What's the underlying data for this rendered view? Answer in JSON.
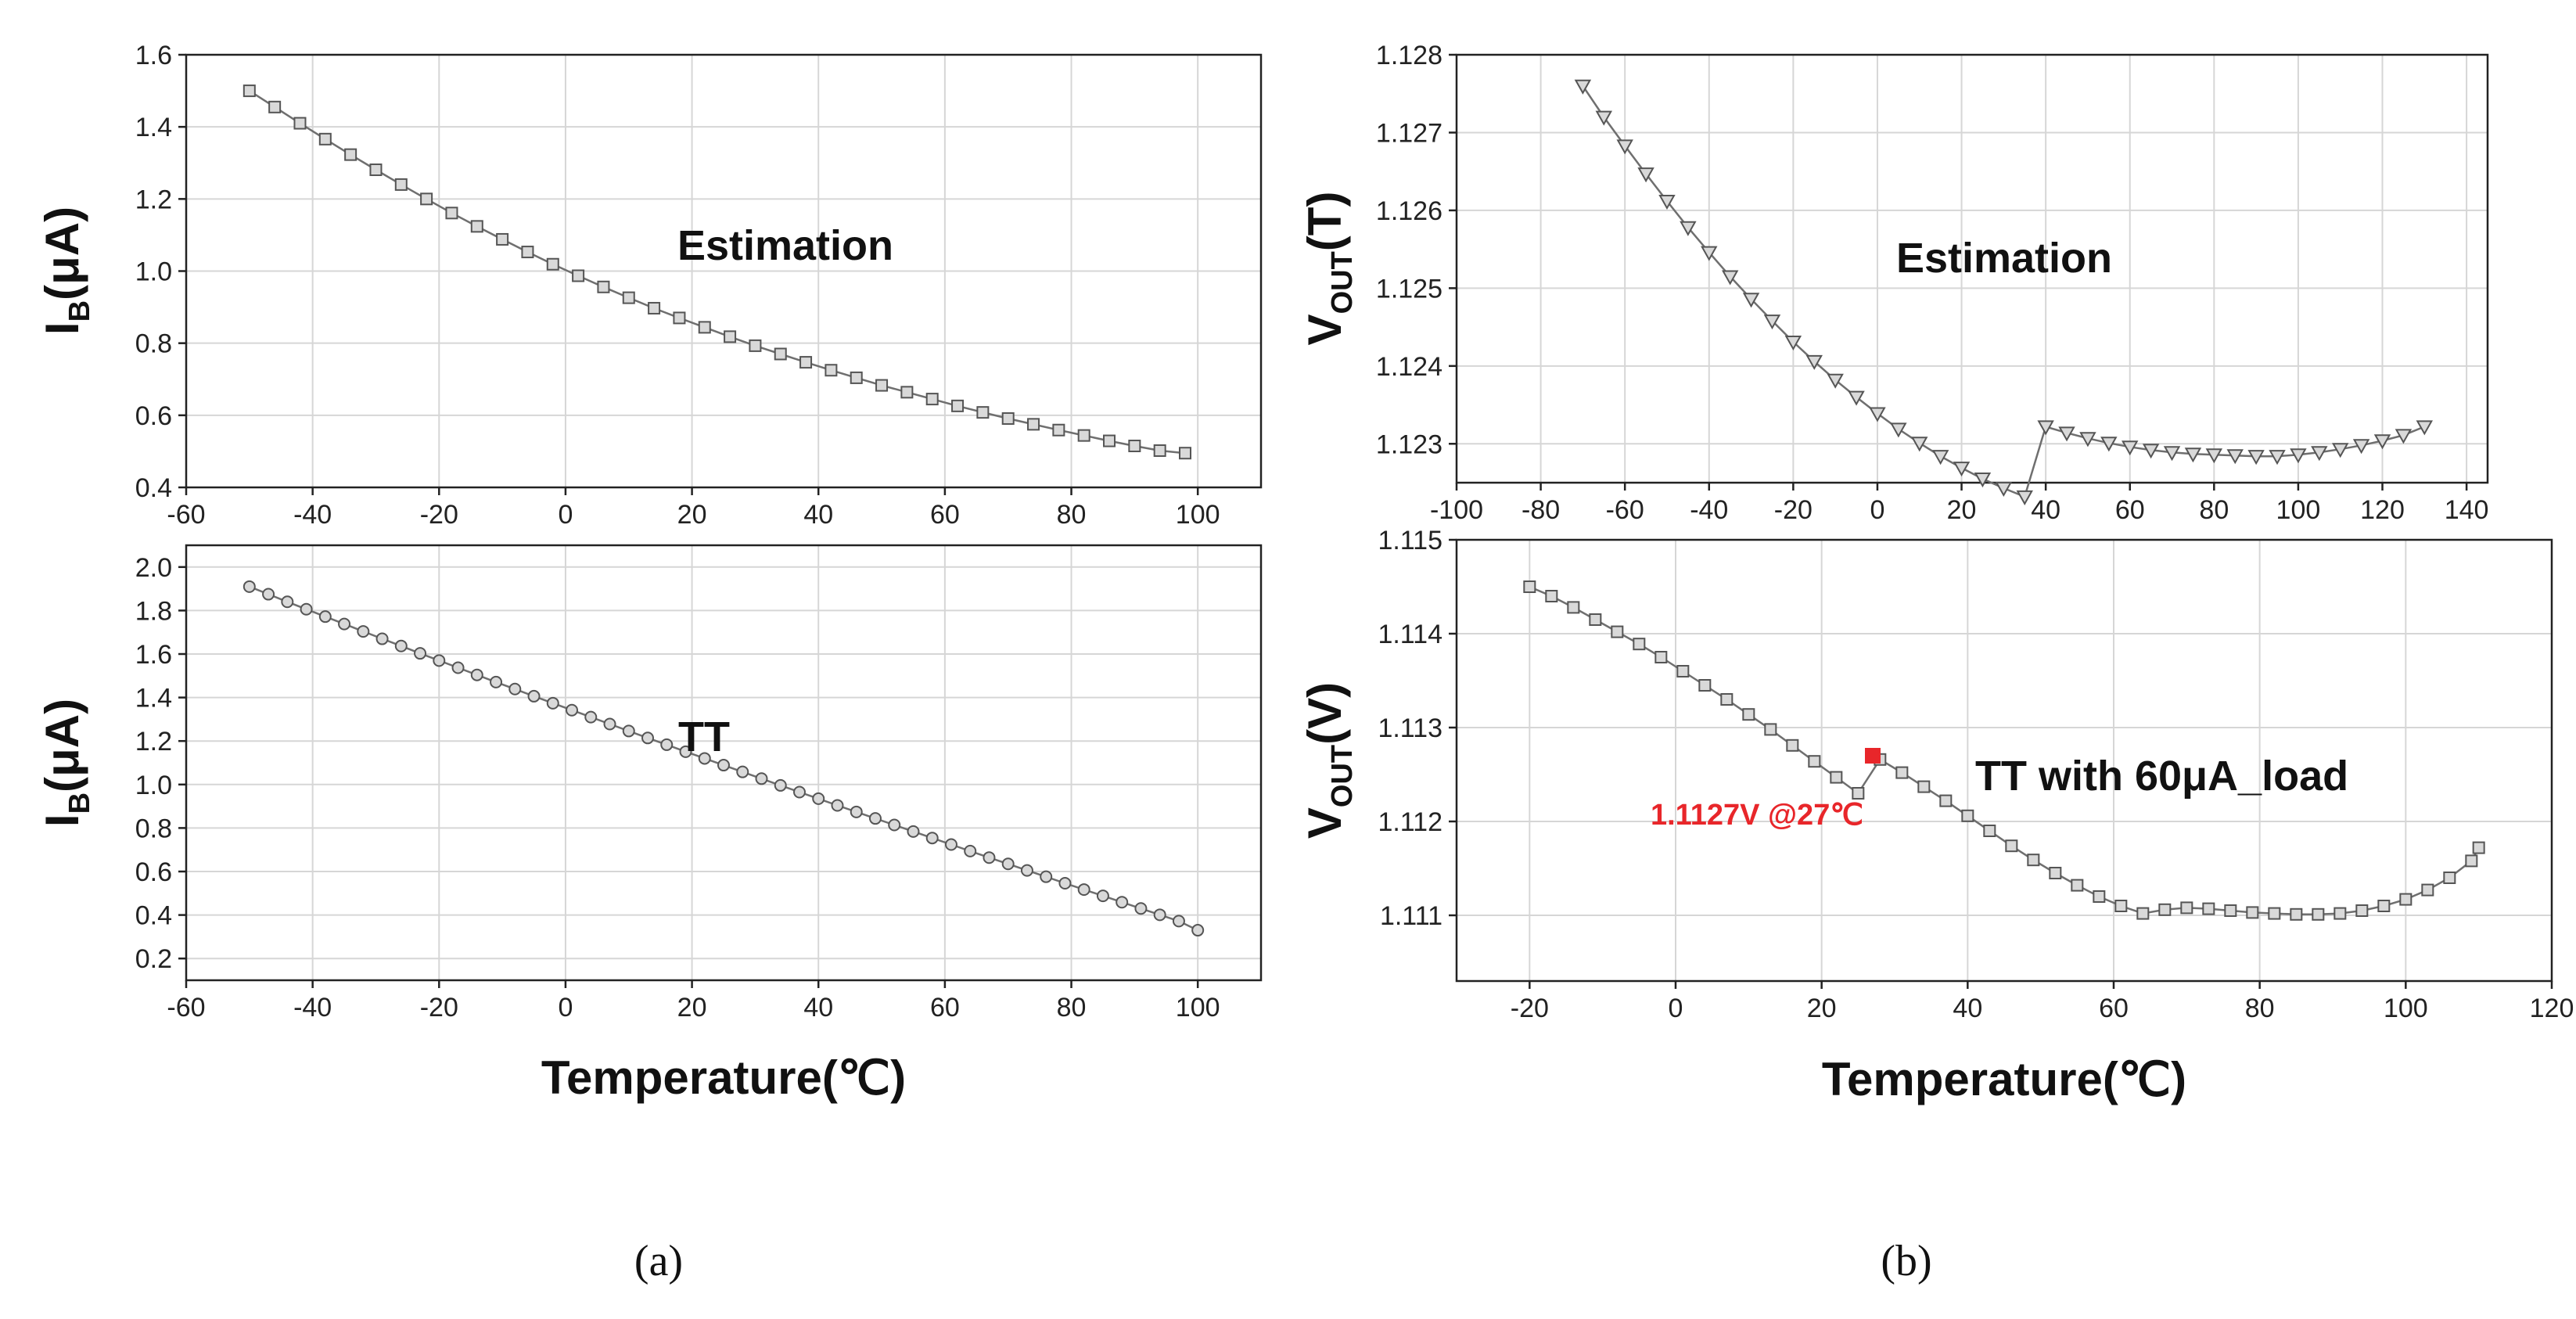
{
  "captions": {
    "a": "(a)",
    "b": "(b)"
  },
  "chart_data": [
    {
      "id": "a_top",
      "type": "line",
      "title": "",
      "annotation": "Estimation",
      "xlabel": "",
      "ylabel": "I_B(μA)",
      "ylabel_main": "I",
      "ylabel_sub": "B",
      "ylabel_rest": "(μA)",
      "xlim": [
        -60,
        110
      ],
      "ylim": [
        0.4,
        1.6
      ],
      "xticks": [
        -60,
        -40,
        -20,
        0,
        20,
        40,
        60,
        80,
        100
      ],
      "yticks": [
        0.4,
        0.6,
        0.8,
        1.0,
        1.2,
        1.4,
        1.6
      ],
      "xtick_labels": [
        "-60",
        "-40",
        "-20",
        "0",
        "20",
        "40",
        "60",
        "80",
        "100"
      ],
      "ytick_labels": [
        "0.4",
        "0.6",
        "0.8",
        "1.0",
        "1.2",
        "1.4",
        "1.6"
      ],
      "marker": "square",
      "series": [
        {
          "name": "Estimation",
          "x": [
            -50,
            -46,
            -42,
            -38,
            -34,
            -30,
            -26,
            -22,
            -18,
            -14,
            -10,
            -6,
            -2,
            2,
            6,
            10,
            14,
            18,
            22,
            26,
            30,
            34,
            38,
            42,
            46,
            50,
            54,
            58,
            62,
            66,
            70,
            74,
            78,
            82,
            86,
            90,
            94,
            98
          ],
          "y": [
            1.5,
            1.455,
            1.41,
            1.366,
            1.323,
            1.281,
            1.24,
            1.2,
            1.161,
            1.124,
            1.088,
            1.053,
            1.019,
            0.987,
            0.956,
            0.926,
            0.897,
            0.87,
            0.844,
            0.818,
            0.793,
            0.77,
            0.747,
            0.725,
            0.704,
            0.683,
            0.664,
            0.645,
            0.626,
            0.608,
            0.591,
            0.575,
            0.559,
            0.544,
            0.529,
            0.515,
            0.502,
            0.495
          ]
        }
      ]
    },
    {
      "id": "a_bottom",
      "type": "line",
      "title": "",
      "annotation": "TT",
      "xlabel": "Temperature(℃)",
      "ylabel": "I_B(μA)",
      "ylabel_main": "I",
      "ylabel_sub": "B",
      "ylabel_rest": "(μA)",
      "xlim": [
        -60,
        110
      ],
      "ylim": [
        0.1,
        2.1
      ],
      "xticks": [
        -60,
        -40,
        -20,
        0,
        20,
        40,
        60,
        80,
        100
      ],
      "yticks": [
        0.2,
        0.4,
        0.6,
        0.8,
        1.0,
        1.2,
        1.4,
        1.6,
        1.8,
        2.0
      ],
      "xtick_labels": [
        "-60",
        "-40",
        "-20",
        "0",
        "20",
        "40",
        "60",
        "80",
        "100"
      ],
      "ytick_labels": [
        "0.2",
        "0.4",
        "0.6",
        "0.8",
        "1.0",
        "1.2",
        "1.4",
        "1.6",
        "1.8",
        "2.0"
      ],
      "marker": "circle",
      "series": [
        {
          "name": "TT",
          "x": [
            -50,
            -47,
            -44,
            -41,
            -38,
            -35,
            -32,
            -29,
            -26,
            -23,
            -20,
            -17,
            -14,
            -11,
            -8,
            -5,
            -2,
            1,
            4,
            7,
            10,
            13,
            16,
            19,
            22,
            25,
            28,
            31,
            34,
            37,
            40,
            43,
            46,
            49,
            52,
            55,
            58,
            61,
            64,
            67,
            70,
            73,
            76,
            79,
            82,
            85,
            88,
            91,
            94,
            97,
            100
          ],
          "y": [
            1.91,
            1.875,
            1.84,
            1.806,
            1.772,
            1.738,
            1.704,
            1.67,
            1.637,
            1.603,
            1.57,
            1.537,
            1.504,
            1.471,
            1.439,
            1.406,
            1.374,
            1.342,
            1.31,
            1.278,
            1.246,
            1.214,
            1.183,
            1.151,
            1.12,
            1.089,
            1.058,
            1.027,
            0.996,
            0.965,
            0.935,
            0.904,
            0.874,
            0.844,
            0.814,
            0.784,
            0.754,
            0.724,
            0.694,
            0.664,
            0.635,
            0.605,
            0.576,
            0.546,
            0.517,
            0.488,
            0.459,
            0.43,
            0.401,
            0.372,
            0.33
          ]
        }
      ]
    },
    {
      "id": "b_top",
      "type": "line",
      "title": "",
      "annotation": "Estimation",
      "xlabel": "",
      "ylabel": "V_OUT(T)",
      "ylabel_main": "V",
      "ylabel_sub": "OUT",
      "ylabel_rest": "(T)",
      "xlim": [
        -100,
        145
      ],
      "ylim": [
        1.1225,
        1.128
      ],
      "xticks": [
        -100,
        -80,
        -60,
        -40,
        -20,
        0,
        20,
        40,
        60,
        80,
        100,
        120,
        140
      ],
      "yticks": [
        1.123,
        1.124,
        1.125,
        1.126,
        1.127,
        1.128
      ],
      "xtick_labels": [
        "-100",
        "-80",
        "-60",
        "-40",
        "-20",
        "0",
        "20",
        "40",
        "60",
        "80",
        "100",
        "120",
        "140"
      ],
      "ytick_labels": [
        "1.123",
        "1.124",
        "1.125",
        "1.126",
        "1.127",
        "1.128"
      ],
      "marker": "triangle-down",
      "series": [
        {
          "name": "Estimation",
          "x": [
            -70,
            -65,
            -60,
            -55,
            -50,
            -45,
            -40,
            -35,
            -30,
            -25,
            -20,
            -15,
            -10,
            -5,
            0,
            5,
            10,
            15,
            20,
            25,
            30,
            35,
            40,
            45,
            50,
            55,
            60,
            65,
            70,
            75,
            80,
            85,
            90,
            95,
            100,
            105,
            110,
            115,
            120,
            125,
            130
          ],
          "y": [
            1.1276,
            1.1272,
            1.12683,
            1.12647,
            1.12612,
            1.12578,
            1.12546,
            1.12515,
            1.12486,
            1.12458,
            1.12431,
            1.12406,
            1.12382,
            1.1236,
            1.12339,
            1.12319,
            1.12301,
            1.12284,
            1.12269,
            1.12255,
            1.12243,
            1.12232,
            1.12322,
            1.12314,
            1.12307,
            1.12301,
            1.12296,
            1.12292,
            1.12289,
            1.12287,
            1.12286,
            1.12285,
            1.12284,
            1.12284,
            1.12286,
            1.12289,
            1.12293,
            1.12298,
            1.12304,
            1.12311,
            1.12322
          ]
        }
      ]
    },
    {
      "id": "b_bottom",
      "type": "line",
      "title": "",
      "annotation": "TT with 60μA_load",
      "highlight": {
        "x": 27,
        "y": 1.1127,
        "label": "1.1127V @27℃"
      },
      "xlabel": "Temperature(℃)",
      "ylabel": "V_OUT(V)",
      "ylabel_main": "V",
      "ylabel_sub": "OUT",
      "ylabel_rest": "(V)",
      "xlim": [
        -30,
        120
      ],
      "ylim": [
        1.1103,
        1.115
      ],
      "xticks": [
        -20,
        0,
        20,
        40,
        60,
        80,
        100,
        120
      ],
      "yticks": [
        1.111,
        1.112,
        1.113,
        1.114,
        1.115
      ],
      "xtick_labels": [
        "-20",
        "0",
        "20",
        "40",
        "60",
        "80",
        "100",
        "120"
      ],
      "ytick_labels": [
        "1.111",
        "1.112",
        "1.113",
        "1.114",
        "1.115"
      ],
      "marker": "square",
      "series": [
        {
          "name": "TT with 60μA_load",
          "x": [
            -20,
            -17,
            -14,
            -11,
            -8,
            -5,
            -2,
            1,
            4,
            7,
            10,
            13,
            16,
            19,
            22,
            25,
            28,
            31,
            34,
            37,
            40,
            43,
            46,
            49,
            52,
            55,
            58,
            61,
            64,
            67,
            70,
            73,
            76,
            79,
            82,
            85,
            88,
            91,
            94,
            97,
            100,
            103,
            106,
            109,
            110
          ],
          "y": [
            1.1145,
            1.1144,
            1.11428,
            1.11415,
            1.11402,
            1.11389,
            1.11375,
            1.1136,
            1.11345,
            1.1133,
            1.11314,
            1.11298,
            1.11281,
            1.11264,
            1.11247,
            1.1123,
            1.11266,
            1.11252,
            1.11237,
            1.11222,
            1.11206,
            1.1119,
            1.11174,
            1.11159,
            1.11145,
            1.11132,
            1.1112,
            1.1111,
            1.11102,
            1.11106,
            1.11108,
            1.11107,
            1.11105,
            1.11103,
            1.11102,
            1.11101,
            1.11101,
            1.11102,
            1.11105,
            1.1111,
            1.11117,
            1.11127,
            1.1114,
            1.11158,
            1.11172
          ]
        }
      ]
    }
  ]
}
